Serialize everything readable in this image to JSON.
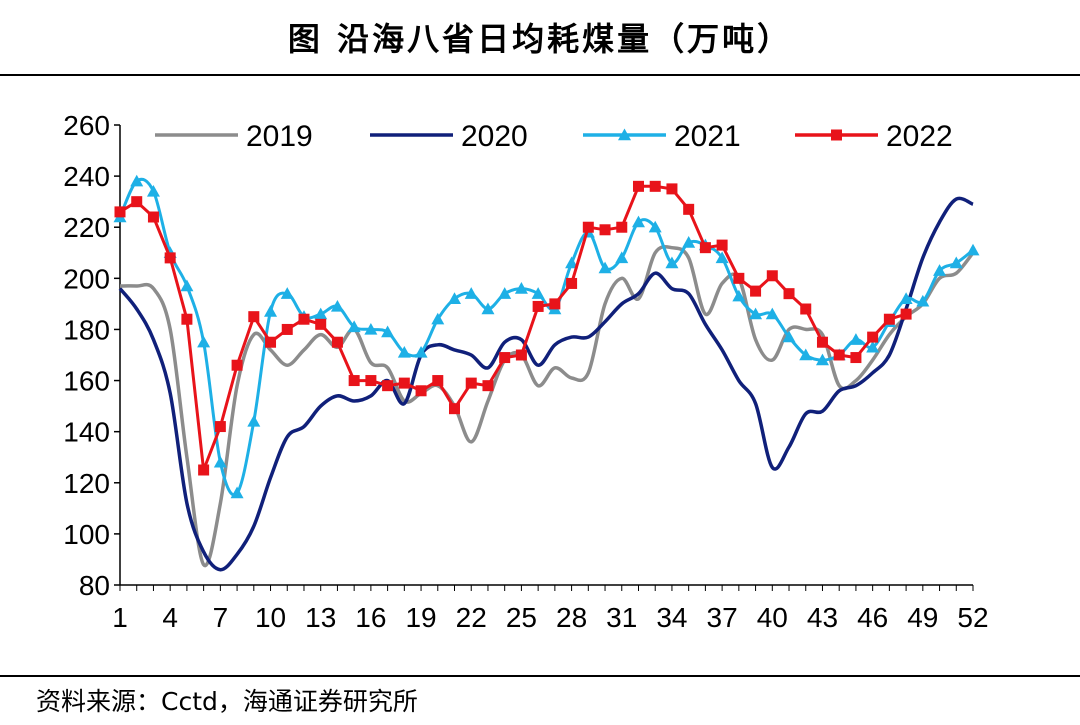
{
  "page": {
    "title": "图  沿海八省日均耗煤量（万吨）",
    "source": "资料来源：Cctd，海通证券研究所"
  },
  "chart_data": {
    "type": "line",
    "title": "沿海八省日均耗煤量（万吨）",
    "xlabel": "",
    "ylabel": "",
    "ylim": [
      80,
      260
    ],
    "yticks": [
      80,
      100,
      120,
      140,
      160,
      180,
      200,
      220,
      240,
      260
    ],
    "xlim": [
      1,
      52
    ],
    "xticks": [
      1,
      4,
      7,
      10,
      13,
      16,
      19,
      22,
      25,
      28,
      31,
      34,
      37,
      40,
      43,
      46,
      49,
      52
    ],
    "legend_position": "top",
    "series": [
      {
        "name": "2019",
        "color": "#8c8c8c",
        "marker": "none",
        "x": [
          1,
          2,
          3,
          4,
          5,
          6,
          7,
          8,
          9,
          10,
          11,
          12,
          13,
          14,
          15,
          16,
          17,
          18,
          19,
          20,
          21,
          22,
          23,
          24,
          25,
          26,
          27,
          28,
          29,
          30,
          31,
          32,
          33,
          34,
          35,
          36,
          37,
          38,
          39,
          40,
          41,
          42,
          43,
          44,
          45,
          46,
          47,
          48,
          49,
          50,
          51,
          52
        ],
        "values": [
          197,
          197,
          196,
          180,
          130,
          88,
          112,
          158,
          178,
          172,
          166,
          172,
          178,
          173,
          180,
          167,
          165,
          152,
          155,
          158,
          150,
          136,
          152,
          168,
          170,
          158,
          165,
          161,
          163,
          190,
          200,
          192,
          210,
          212,
          208,
          186,
          198,
          200,
          176,
          168,
          180,
          180,
          178,
          158,
          160,
          168,
          178,
          185,
          190,
          200,
          202,
          210
        ]
      },
      {
        "name": "2020",
        "color": "#10207a",
        "marker": "none",
        "x": [
          1,
          2,
          3,
          4,
          5,
          6,
          7,
          8,
          9,
          10,
          11,
          12,
          13,
          14,
          15,
          16,
          17,
          18,
          19,
          20,
          21,
          22,
          23,
          24,
          25,
          26,
          27,
          28,
          29,
          30,
          31,
          32,
          33,
          34,
          35,
          36,
          37,
          38,
          39,
          40,
          41,
          42,
          43,
          44,
          45,
          46,
          47,
          48,
          49,
          50,
          51,
          52
        ],
        "values": [
          196,
          188,
          176,
          155,
          112,
          93,
          86,
          92,
          103,
          122,
          138,
          142,
          150,
          154,
          152,
          154,
          160,
          151,
          170,
          174,
          172,
          170,
          165,
          175,
          176,
          166,
          174,
          177,
          177,
          183,
          190,
          194,
          202,
          196,
          194,
          182,
          172,
          160,
          151,
          126,
          134,
          147,
          148,
          156,
          158,
          163,
          170,
          188,
          208,
          222,
          231,
          229
        ]
      },
      {
        "name": "2021",
        "color": "#1eb0e6",
        "marker": "triangle",
        "x": [
          1,
          2,
          3,
          4,
          5,
          6,
          7,
          8,
          9,
          10,
          11,
          12,
          13,
          14,
          15,
          16,
          17,
          18,
          19,
          20,
          21,
          22,
          23,
          24,
          25,
          26,
          27,
          28,
          29,
          30,
          31,
          32,
          33,
          34,
          35,
          36,
          37,
          38,
          39,
          40,
          41,
          42,
          43,
          44,
          45,
          46,
          47,
          48,
          49,
          50,
          51,
          52
        ],
        "values": [
          224,
          238,
          234,
          210,
          197,
          175,
          128,
          116,
          144,
          187,
          194,
          185,
          186,
          189,
          181,
          180,
          179,
          171,
          171,
          184,
          192,
          194,
          188,
          194,
          196,
          194,
          188,
          206,
          218,
          204,
          208,
          222,
          220,
          206,
          214,
          213,
          208,
          193,
          186,
          186,
          177,
          170,
          168,
          170,
          176,
          173,
          183,
          192,
          191,
          203,
          206,
          211
        ]
      },
      {
        "name": "2022",
        "color": "#e8131a",
        "marker": "square",
        "x": [
          1,
          2,
          3,
          4,
          5,
          6,
          7,
          8,
          9,
          10,
          11,
          12,
          13,
          14,
          15,
          16,
          17,
          18,
          19,
          20,
          21,
          22,
          23,
          24,
          25,
          26,
          27,
          28,
          29,
          30,
          31,
          32,
          33,
          34,
          35,
          36,
          37,
          38,
          39,
          40,
          41,
          42,
          43,
          44,
          45,
          46,
          47,
          48
        ],
        "values": [
          226,
          230,
          224,
          208,
          184,
          125,
          142,
          166,
          185,
          175,
          180,
          184,
          182,
          175,
          160,
          160,
          158,
          159,
          156,
          160,
          149,
          159,
          158,
          169,
          170,
          189,
          190,
          198,
          220,
          219,
          220,
          236,
          236,
          235,
          227,
          212,
          213,
          200,
          195,
          201,
          194,
          188,
          175,
          170,
          169,
          177,
          184,
          186
        ]
      }
    ]
  }
}
